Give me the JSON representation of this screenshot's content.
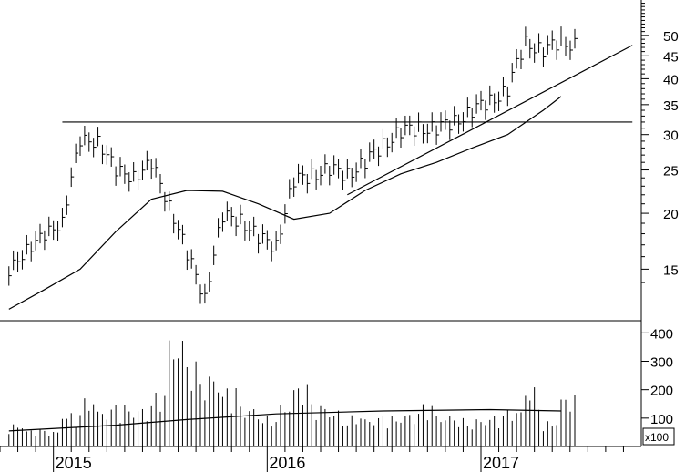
{
  "chart_data": [
    {
      "type": "line",
      "subtype": "ohlc-bars-log-scale",
      "title": "",
      "xlabel": "",
      "ylabel": "",
      "y_scale": "log",
      "ylim": [
        11.5,
        60
      ],
      "y_ticks": [
        "50",
        "45",
        "40",
        "35",
        "30",
        "25",
        "20",
        "15"
      ],
      "y_tick_values": [
        50,
        45,
        40,
        35,
        30,
        25,
        20,
        15
      ],
      "x_range": [
        "2014-10",
        "2017-09"
      ],
      "x_tick_labels": [
        "2015",
        "2016",
        "2017"
      ],
      "x_tick_dates": [
        "2015-01",
        "2016-01",
        "2017-01"
      ],
      "grid": false,
      "series": [
        {
          "style": "weekly-bars",
          "dates": [
            "2014-10",
            "2014-11",
            "2014-12",
            "2015-01",
            "2015-02",
            "2015-03",
            "2015-04",
            "2015-05",
            "2015-06",
            "2015-07",
            "2015-08",
            "2015-09",
            "2015-10",
            "2015-11",
            "2015-12",
            "2016-01",
            "2016-02",
            "2016-03",
            "2016-04",
            "2016-05",
            "2016-06",
            "2016-07",
            "2016-08",
            "2016-09",
            "2016-10",
            "2016-11",
            "2016-12",
            "2017-01",
            "2017-02",
            "2017-03",
            "2017-04",
            "2017-05"
          ],
          "close": [
            14.5,
            17.0,
            17.5,
            19.5,
            28.5,
            29.5,
            24.5,
            24.5,
            25.5,
            21.0,
            16.0,
            13.0,
            19.5,
            19.5,
            17.5,
            17.0,
            23.5,
            24.5,
            25.0,
            24.5,
            26.0,
            28.5,
            30.5,
            31.0,
            31.0,
            32.0,
            34.0,
            35.5,
            38.0,
            48.0,
            46.5,
            48.0
          ]
        },
        {
          "style": "moving-average",
          "dates": [
            "2014-10",
            "2014-12",
            "2015-02",
            "2015-04",
            "2015-06",
            "2015-08",
            "2015-10",
            "2015-12",
            "2016-02",
            "2016-04",
            "2016-06",
            "2016-08",
            "2016-10",
            "2016-12",
            "2017-02",
            "2017-04",
            "2017-05"
          ],
          "values": [
            12.2,
            13.5,
            15.0,
            18.2,
            21.5,
            22.5,
            22.4,
            21.0,
            19.4,
            20.0,
            22.5,
            24.5,
            26.0,
            28.0,
            30.0,
            34.0,
            36.5
          ]
        },
        {
          "style": "trendline",
          "dates": [
            "2016-05",
            "2017-09"
          ],
          "values": [
            22.0,
            47.5
          ]
        },
        {
          "style": "horizontal-line",
          "dates": [
            "2015-01",
            "2017-09"
          ],
          "values": [
            32.0,
            32.0
          ]
        }
      ]
    },
    {
      "type": "bar",
      "subtype": "volume",
      "title": "",
      "ylim": [
        0,
        430
      ],
      "y_ticks": [
        "400",
        "300",
        "200",
        "100"
      ],
      "y_tick_values": [
        400,
        300,
        200,
        100
      ],
      "unit_label": "x100",
      "grid": false,
      "series": [
        {
          "style": "bars",
          "dates": [
            "2014-10",
            "2014-11",
            "2014-12",
            "2015-01",
            "2015-02",
            "2015-03",
            "2015-04",
            "2015-05",
            "2015-06",
            "2015-07",
            "2015-08",
            "2015-09",
            "2015-10",
            "2015-11",
            "2015-12",
            "2016-01",
            "2016-02",
            "2016-03",
            "2016-04",
            "2016-05",
            "2016-06",
            "2016-07",
            "2016-08",
            "2016-09",
            "2016-10",
            "2016-11",
            "2016-12",
            "2017-01",
            "2017-02",
            "2017-03",
            "2017-04",
            "2017-05"
          ],
          "values": [
            80,
            60,
            55,
            120,
            170,
            130,
            150,
            140,
            190,
            380,
            300,
            260,
            210,
            140,
            110,
            150,
            220,
            150,
            130,
            110,
            100,
            110,
            120,
            150,
            110,
            100,
            100,
            110,
            130,
            210,
            90,
            180
          ]
        },
        {
          "style": "average-line",
          "dates": [
            "2014-10",
            "2015-04",
            "2015-08",
            "2016-01",
            "2016-07",
            "2017-01",
            "2017-05"
          ],
          "values": [
            55,
            75,
            95,
            115,
            125,
            130,
            125
          ]
        }
      ]
    }
  ]
}
